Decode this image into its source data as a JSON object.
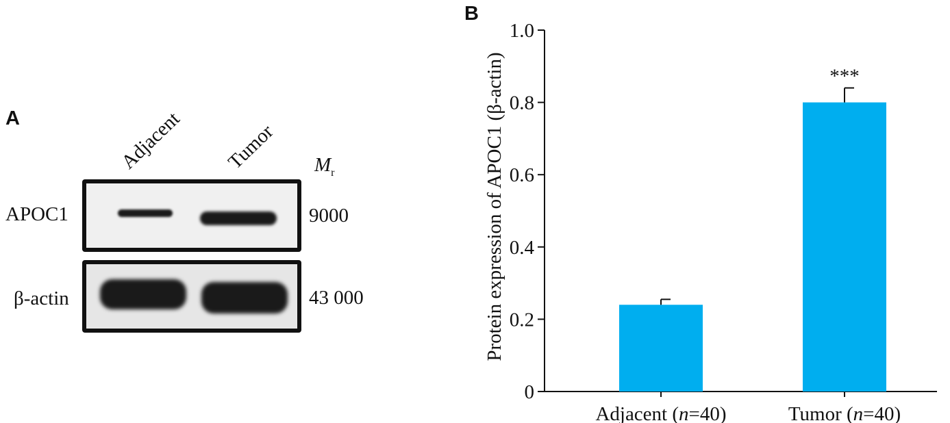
{
  "panel_a": {
    "letter": "A",
    "lanes": [
      "Adjacent",
      "Tumor"
    ],
    "mr_label": "M",
    "mr_sub": "r",
    "rows": [
      {
        "name": "APOC1",
        "mw": "9000"
      },
      {
        "name": "β-actin",
        "mw": "43 000"
      }
    ]
  },
  "panel_b": {
    "letter": "B"
  },
  "chart_data": {
    "type": "bar",
    "categories": [
      "Adjacent (n=40)",
      "Tumor (n=40)"
    ],
    "category_parts": [
      {
        "pre": "Adjacent (",
        "n": "n",
        "post": "=40)"
      },
      {
        "pre": "Tumor (",
        "n": "n",
        "post": "=40)"
      }
    ],
    "values": [
      0.24,
      0.8
    ],
    "errors": [
      0.015,
      0.04
    ],
    "annotations": [
      "",
      "***"
    ],
    "ylabel": "Protein expression of APOC1 (β-actin)",
    "ylim": [
      0,
      1.0
    ],
    "yticks": [
      0,
      0.2,
      0.4,
      0.6,
      0.8,
      1.0
    ],
    "ytick_labels": [
      "0",
      "0.2",
      "0.4",
      "0.6",
      "0.8",
      "1.0"
    ],
    "bar_color": "#00aeef",
    "grid": false
  }
}
